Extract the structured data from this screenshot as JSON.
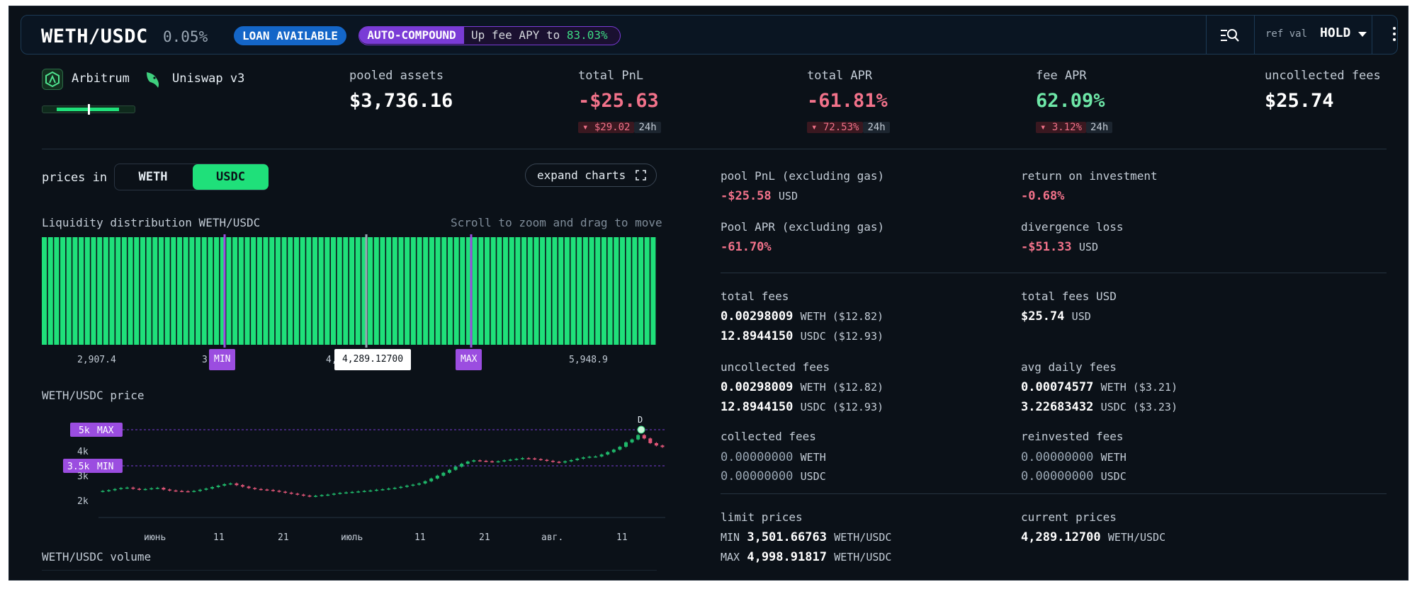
{
  "header": {
    "pair": "WETH/USDC",
    "fee_tier": "0.05%",
    "loan_badge": "LOAN AVAILABLE",
    "autocompound_badge": "AUTO-COMPOUND",
    "fee_apy_prefix": "Up fee APY to",
    "fee_apy_value": "83.03%",
    "ref_val_label": "ref val",
    "ref_val_value": "HOLD"
  },
  "position": {
    "chain": "Arbitrum",
    "dex": "Uniswap v3"
  },
  "stats": {
    "pooled_assets": {
      "label": "pooled assets",
      "value": "$3,736.16"
    },
    "total_pnl": {
      "label": "total PnL",
      "value": "-$25.63",
      "change": "$29.02",
      "timeframe": "24h"
    },
    "total_apr": {
      "label": "total APR",
      "value": "-61.81%",
      "change": "72.53%",
      "timeframe": "24h"
    },
    "fee_apr": {
      "label": "fee APR",
      "value": "62.09%",
      "change": "3.12%",
      "timeframe": "24h"
    },
    "uncollected_fees": {
      "label": "uncollected fees",
      "value": "$25.74"
    }
  },
  "controls": {
    "prices_in_label": "prices in",
    "token_a": "WETH",
    "token_b": "USDC",
    "selected": "USDC",
    "expand_charts": "expand charts"
  },
  "liquidity": {
    "title": "Liquidity distribution WETH/USDC",
    "hint": "Scroll to zoom and drag to move",
    "ticks": [
      "2,907.4",
      "3,",
      "4,",
      "5,948.9"
    ],
    "min_tag": "MIN",
    "max_tag": "MAX",
    "current_price": "4,289.12700"
  },
  "price_chart": {
    "title": "WETH/USDC price",
    "max_level": "5k",
    "max_tag": "MAX",
    "min_level": "3.5k",
    "min_tag": "MIN",
    "y_ticks": [
      "4k",
      "3k",
      "2k"
    ],
    "x_ticks": [
      "июнь",
      "11",
      "21",
      "июль",
      "11",
      "21",
      "авг.",
      "11"
    ],
    "marker": "D",
    "volume_title": "WETH/USDC volume"
  },
  "chart_data": {
    "type": "candlestick",
    "title": "WETH/USDC price",
    "ylim": [
      1700,
      5600
    ],
    "y_ticks": [
      2000,
      3000,
      4000
    ],
    "reference_lines": [
      {
        "label": "MAX",
        "value": 5000
      },
      {
        "label": "MIN",
        "value": 3500
      }
    ],
    "close": [
      2480,
      2510,
      2560,
      2600,
      2620,
      2570,
      2540,
      2560,
      2590,
      2610,
      2540,
      2500,
      2480,
      2470,
      2460,
      2480,
      2530,
      2580,
      2640,
      2700,
      2760,
      2790,
      2720,
      2660,
      2600,
      2560,
      2540,
      2520,
      2490,
      2450,
      2410,
      2370,
      2330,
      2290,
      2260,
      2280,
      2310,
      2330,
      2370,
      2400,
      2420,
      2440,
      2460,
      2480,
      2500,
      2530,
      2550,
      2580,
      2610,
      2650,
      2700,
      2740,
      2790,
      2880,
      2990,
      3110,
      3230,
      3350,
      3480,
      3600,
      3690,
      3740,
      3720,
      3700,
      3680,
      3700,
      3740,
      3770,
      3800,
      3830,
      3820,
      3790,
      3760,
      3720,
      3680,
      3650,
      3700,
      3750,
      3810,
      3860,
      3890,
      3900,
      3980,
      4080,
      4180,
      4300,
      4480,
      4600,
      4780,
      4640,
      4450,
      4350,
      4290
    ]
  },
  "details": {
    "pool_pnl": {
      "label": "pool PnL (excluding gas)",
      "value": "-$25.58",
      "unit": "USD"
    },
    "roi": {
      "label": "return on investment",
      "value": "-0.68%"
    },
    "pool_apr": {
      "label": "Pool APR (excluding gas)",
      "value": "-61.70%"
    },
    "divergence_loss": {
      "label": "divergence loss",
      "value": "-$51.33",
      "unit": "USD"
    },
    "total_fees": {
      "label": "total fees",
      "weth": "0.00298009",
      "weth_unit": "WETH ($12.82)",
      "usdc": "12.8944150",
      "usdc_unit": "USDC ($12.93)"
    },
    "total_fees_usd": {
      "label": "total fees USD",
      "value": "$25.74",
      "unit": "USD"
    },
    "uncollected_fees": {
      "label": "uncollected fees",
      "weth": "0.00298009",
      "weth_unit": "WETH ($12.82)",
      "usdc": "12.8944150",
      "usdc_unit": "USDC ($12.93)"
    },
    "avg_daily_fees": {
      "label": "avg daily fees",
      "weth": "0.00074577",
      "weth_unit": "WETH ($3.21)",
      "usdc": "3.22683432",
      "usdc_unit": "USDC ($3.23)"
    },
    "collected_fees": {
      "label": "collected fees",
      "weth": "0.00000000",
      "weth_unit": "WETH",
      "usdc": "0.00000000",
      "usdc_unit": "USDC"
    },
    "reinvested_fees": {
      "label": "reinvested fees",
      "weth": "0.00000000",
      "weth_unit": "WETH",
      "usdc": "0.00000000",
      "usdc_unit": "USDC"
    },
    "limit_prices": {
      "label": "limit prices",
      "min_label": "MIN",
      "min": "3,501.66763",
      "max_label": "MAX",
      "max": "4,998.91817",
      "unit": "WETH/USDC"
    },
    "current_prices": {
      "label": "current prices",
      "value": "4,289.12700",
      "unit": "WETH/USDC"
    }
  },
  "colors": {
    "accent_green": "#1fe07a",
    "negative": "#f2728a",
    "purple": "#9b4de0",
    "blue": "#1466c8"
  }
}
